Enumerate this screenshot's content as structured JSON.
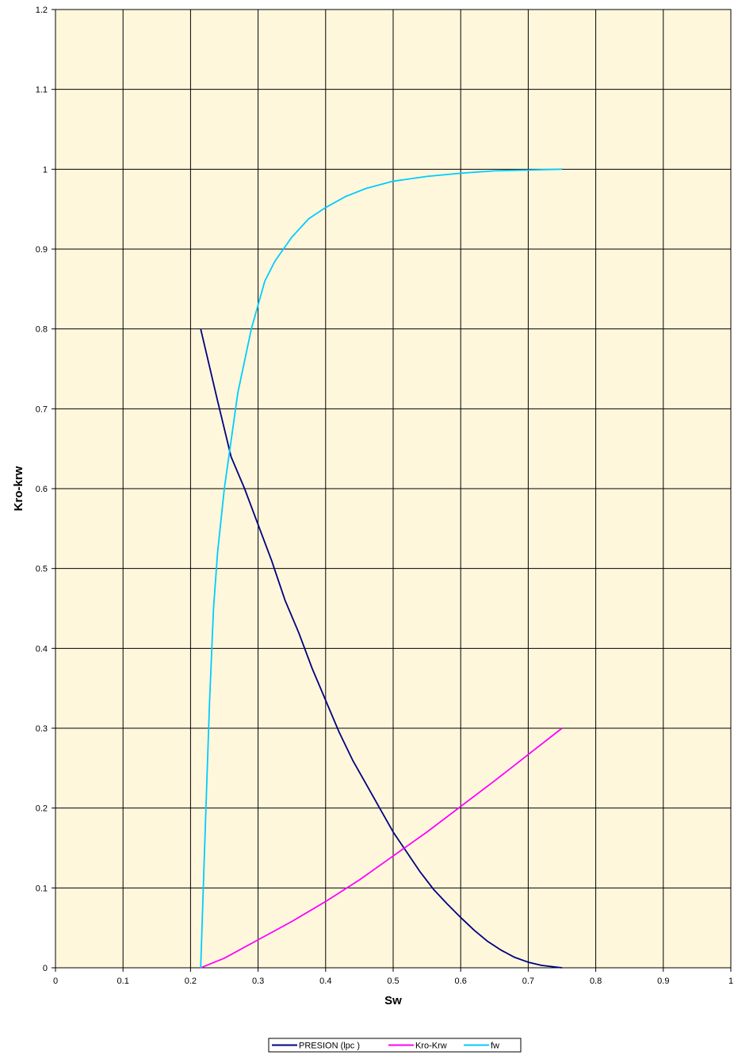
{
  "chart_data": {
    "type": "line",
    "title": "",
    "xlabel": "Sw",
    "ylabel": "Kro-krw",
    "xlim": [
      0,
      1
    ],
    "ylim": [
      0,
      1.2
    ],
    "x_ticks": [
      "0",
      "0.1",
      "0.2",
      "0.3",
      "0.4",
      "0.5",
      "0.6",
      "0.7",
      "0.8",
      "0.9",
      "1"
    ],
    "y_ticks": [
      "0",
      "0.1",
      "0.2",
      "0.3",
      "0.4",
      "0.5",
      "0.6",
      "0.7",
      "0.8",
      "0.9",
      "1",
      "1.1",
      "1.2"
    ],
    "grid": true,
    "legend_position": "bottom",
    "plot_background": "#FFF7DC",
    "series": [
      {
        "name": "PRESION (lpc )",
        "color": "#000080",
        "points": [
          [
            0.215,
            0.8
          ],
          [
            0.24,
            0.71
          ],
          [
            0.26,
            0.64
          ],
          [
            0.28,
            0.6
          ],
          [
            0.3,
            0.555
          ],
          [
            0.32,
            0.51
          ],
          [
            0.34,
            0.46
          ],
          [
            0.36,
            0.42
          ],
          [
            0.38,
            0.375
          ],
          [
            0.4,
            0.335
          ],
          [
            0.42,
            0.295
          ],
          [
            0.44,
            0.26
          ],
          [
            0.46,
            0.23
          ],
          [
            0.48,
            0.2
          ],
          [
            0.5,
            0.17
          ],
          [
            0.52,
            0.145
          ],
          [
            0.54,
            0.12
          ],
          [
            0.56,
            0.098
          ],
          [
            0.58,
            0.08
          ],
          [
            0.6,
            0.063
          ],
          [
            0.62,
            0.047
          ],
          [
            0.64,
            0.033
          ],
          [
            0.66,
            0.022
          ],
          [
            0.68,
            0.013
          ],
          [
            0.7,
            0.007
          ],
          [
            0.72,
            0.003
          ],
          [
            0.75,
            0.0
          ]
        ]
      },
      {
        "name": "Kro-Krw",
        "color": "#FF00FF",
        "points": [
          [
            0.215,
            0.0
          ],
          [
            0.25,
            0.012
          ],
          [
            0.3,
            0.035
          ],
          [
            0.35,
            0.058
          ],
          [
            0.4,
            0.083
          ],
          [
            0.45,
            0.11
          ],
          [
            0.5,
            0.14
          ],
          [
            0.55,
            0.17
          ],
          [
            0.6,
            0.202
          ],
          [
            0.65,
            0.234
          ],
          [
            0.7,
            0.267
          ],
          [
            0.75,
            0.3
          ]
        ]
      },
      {
        "name": "fw",
        "color": "#00CCFF",
        "points": [
          [
            0.215,
            0.0
          ],
          [
            0.222,
            0.18
          ],
          [
            0.228,
            0.33
          ],
          [
            0.234,
            0.45
          ],
          [
            0.24,
            0.52
          ],
          [
            0.25,
            0.6
          ],
          [
            0.26,
            0.66
          ],
          [
            0.27,
            0.72
          ],
          [
            0.28,
            0.76
          ],
          [
            0.29,
            0.8
          ],
          [
            0.3,
            0.83
          ],
          [
            0.31,
            0.86
          ],
          [
            0.325,
            0.885
          ],
          [
            0.35,
            0.915
          ],
          [
            0.375,
            0.938
          ],
          [
            0.4,
            0.952
          ],
          [
            0.43,
            0.966
          ],
          [
            0.46,
            0.976
          ],
          [
            0.5,
            0.985
          ],
          [
            0.55,
            0.991
          ],
          [
            0.6,
            0.995
          ],
          [
            0.65,
            0.998
          ],
          [
            0.7,
            0.999
          ],
          [
            0.75,
            1.0
          ]
        ]
      }
    ]
  }
}
